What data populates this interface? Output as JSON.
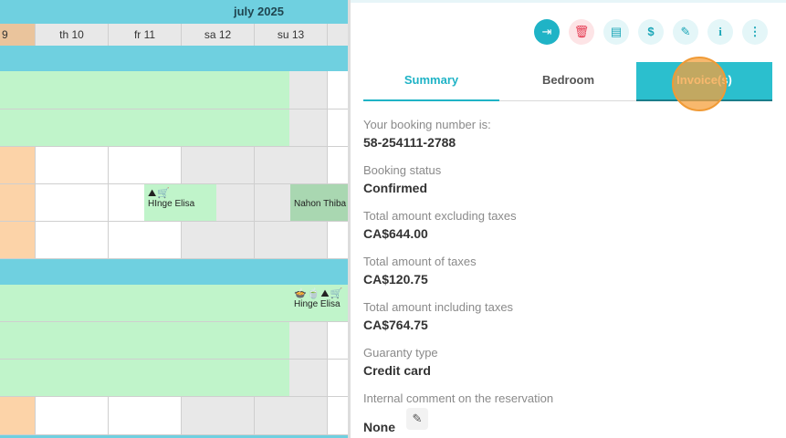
{
  "calendar": {
    "month": "july 2025",
    "days": [
      {
        "label": "9",
        "type": "highlight"
      },
      {
        "label": "th 10",
        "type": "normal"
      },
      {
        "label": "fr 11",
        "type": "normal"
      },
      {
        "label": "sa 12",
        "type": "normal"
      },
      {
        "label": "su 13",
        "type": "normal"
      }
    ],
    "reservations": [
      {
        "icons": "⛰🛒",
        "name": "HInge Elisa"
      },
      {
        "icons": "",
        "name": "Nahon Thiba"
      },
      {
        "icons": "🍲🍵⛰🛒",
        "name": "Hinge Elisa"
      }
    ]
  },
  "toolbar": {
    "buttons": [
      {
        "name": "check-in-button",
        "icon": "sign-in-icon",
        "glyph": "⇥",
        "variant": "primary"
      },
      {
        "name": "delete-button",
        "icon": "trash-icon",
        "glyph": "🗑",
        "variant": "danger"
      },
      {
        "name": "document-button",
        "icon": "file-icon",
        "glyph": "▤",
        "variant": "light"
      },
      {
        "name": "payment-button",
        "icon": "money-icon",
        "glyph": "$",
        "variant": "light"
      },
      {
        "name": "edit-button",
        "icon": "edit-icon",
        "glyph": "✎",
        "variant": "light"
      },
      {
        "name": "info-button",
        "icon": "info-icon",
        "glyph": "i",
        "variant": "light"
      },
      {
        "name": "more-button",
        "icon": "more-vertical-icon",
        "glyph": "⋮",
        "variant": "light"
      }
    ]
  },
  "tabs": [
    {
      "label": "Summary",
      "state": "active"
    },
    {
      "label": "Bedroom",
      "state": "normal"
    },
    {
      "label": "Invoice(s)",
      "state": "highlight"
    }
  ],
  "summary": {
    "fields": [
      {
        "label": "Your booking number is:",
        "value": "58-254111-2788"
      },
      {
        "label": "Booking status",
        "value": "Confirmed"
      },
      {
        "label": "Total amount excluding taxes",
        "value": "CA$644.00"
      },
      {
        "label": "Total amount of taxes",
        "value": "CA$120.75"
      },
      {
        "label": "Total amount including taxes",
        "value": "CA$764.75"
      },
      {
        "label": "Guaranty type",
        "value": "Credit card"
      },
      {
        "label": "Internal comment on the reservation",
        "value": "None"
      }
    ]
  },
  "colors": {
    "accent": "#1fb3c6",
    "calendar_header": "#6fd0e0",
    "booking_green": "#c0f4ca",
    "highlight_peach": "#fcd3a8",
    "cursor_ring": "#f09a35"
  }
}
